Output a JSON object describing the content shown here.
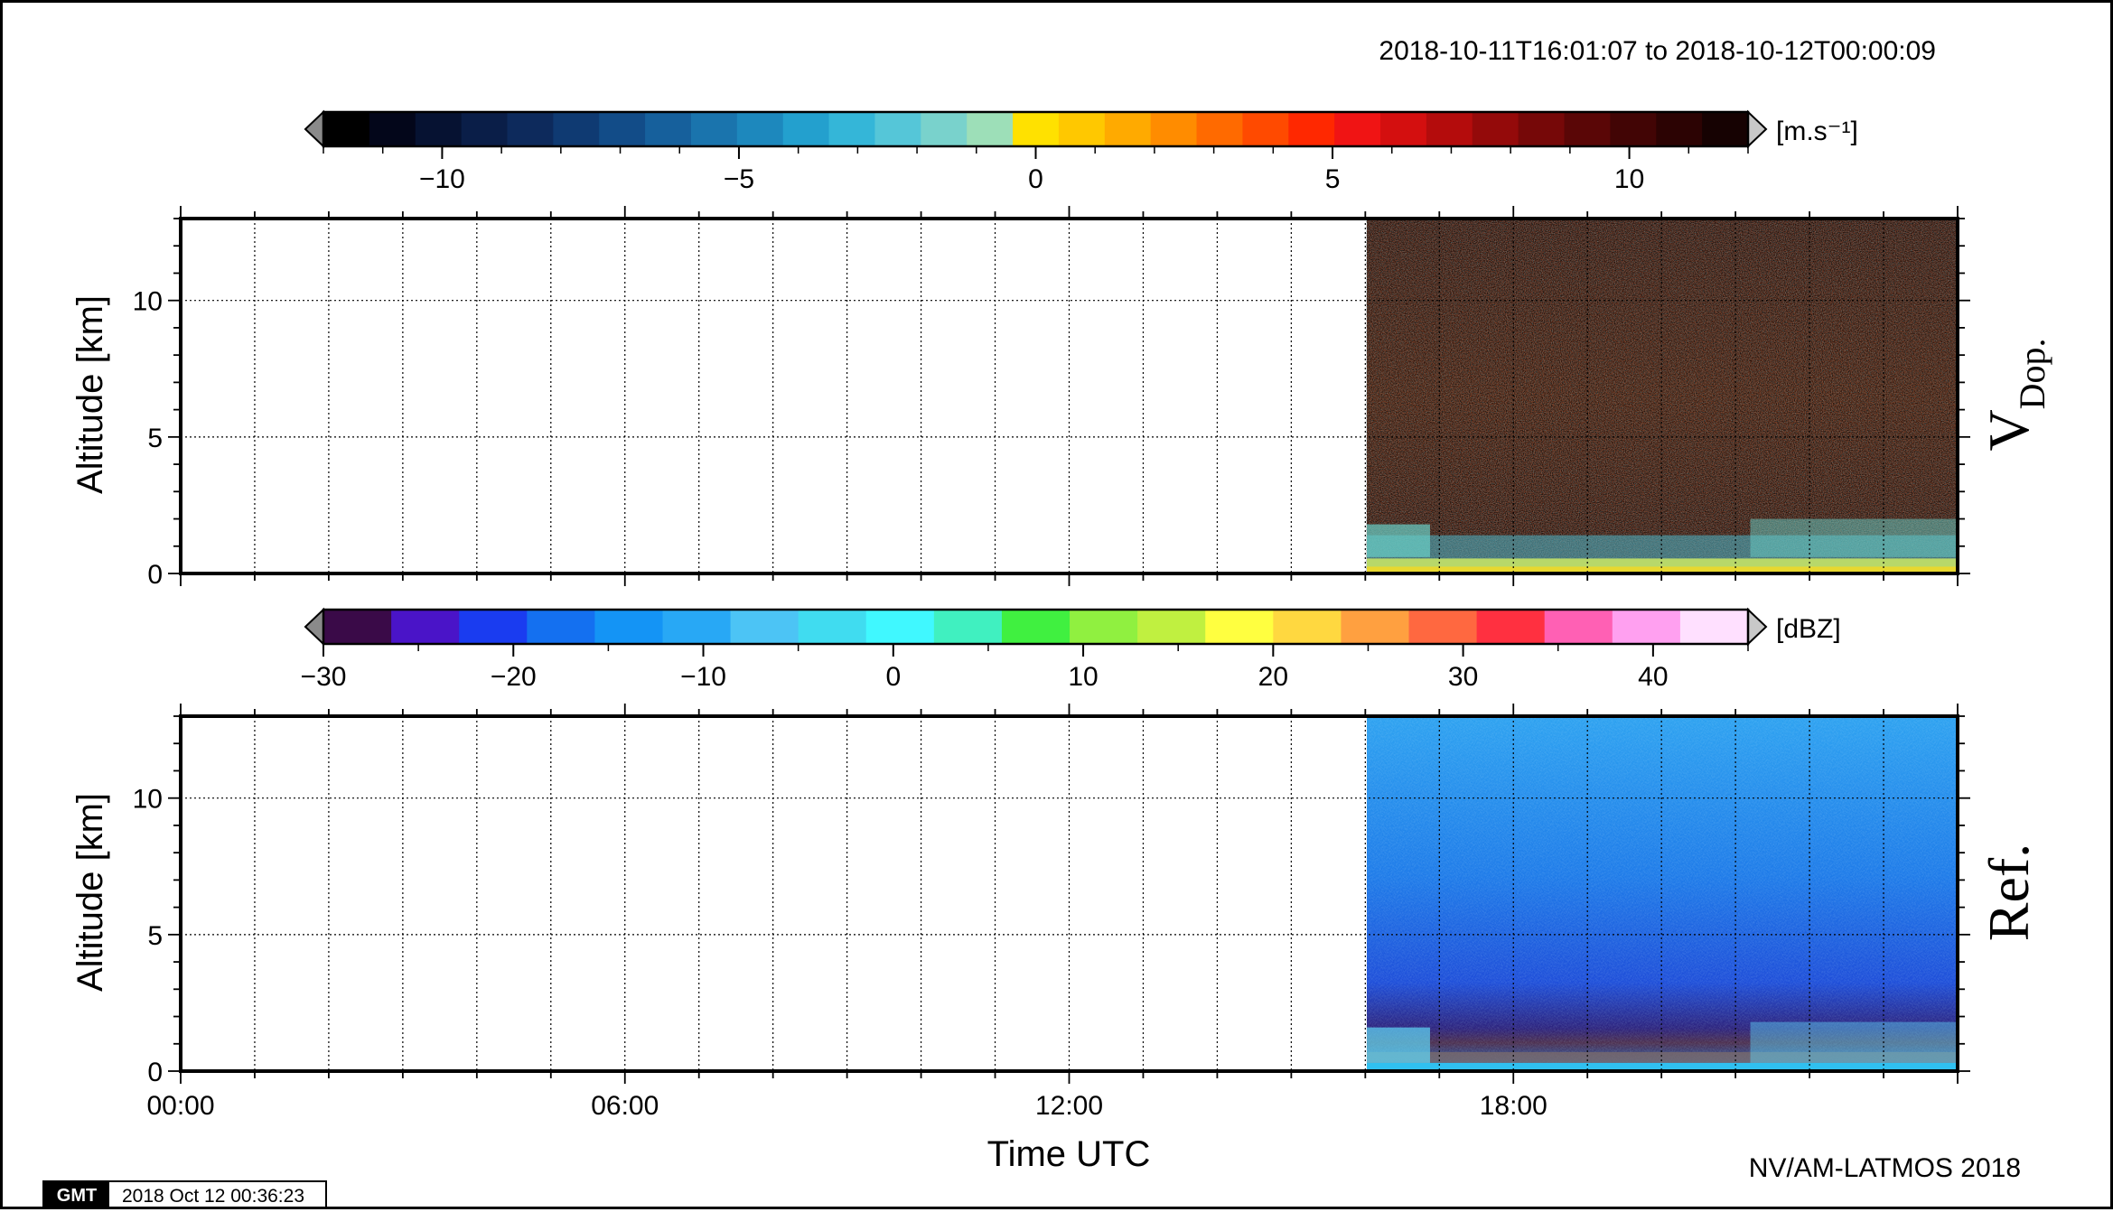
{
  "header": {
    "time_range": "2018-10-11T16:01:07 to 2018-10-12T00:00:09"
  },
  "footer": {
    "gmt_logo": "GMT",
    "timestamp": "2018 Oct 12 00:36:23",
    "credit": "NV/AM-LATMOS 2018"
  },
  "chart_data": [
    {
      "type": "heatmap",
      "panel_label": "VDop.",
      "panel_label_main": "V",
      "panel_label_sub": "Dop.",
      "ylabel": "Altitude [km]",
      "xlabel": "",
      "ylim": [
        0,
        13
      ],
      "yticks": [
        0,
        5,
        10
      ],
      "xlim_hours": [
        0,
        24
      ],
      "data_start_hour": 16.02,
      "data_end_hour": 24.0,
      "grid": true,
      "colorbar": {
        "unit_label": "[m.s⁻¹]",
        "range": [
          -12,
          12
        ],
        "ticks": [
          "−10",
          "−5",
          "0",
          "5",
          "10"
        ],
        "tick_values": [
          -10,
          -5,
          0,
          5,
          10
        ],
        "colors": [
          "#000000",
          "#03061a",
          "#061232",
          "#0a1e48",
          "#0d2a5c",
          "#0f3a72",
          "#124c88",
          "#16609c",
          "#1a74ad",
          "#1d88bd",
          "#23a0ce",
          "#34b6d8",
          "#55c6d8",
          "#79d2cc",
          "#9ddfb8",
          "#ffe100",
          "#ffc800",
          "#ffaa00",
          "#ff8c00",
          "#ff6a00",
          "#ff4a00",
          "#ff2800",
          "#f01414",
          "#d40f0f",
          "#b40c0c",
          "#940a0a",
          "#760808",
          "#5a0606",
          "#420505",
          "#2c0303",
          "#160202"
        ]
      },
      "summary": "Noisy Doppler velocity field from 16:01 onwards; low-level echo below ~2 km"
    },
    {
      "type": "heatmap",
      "panel_label": "Ref.",
      "ylabel": "Altitude [km]",
      "xlabel": "Time UTC",
      "xticks": [
        "00:00",
        "06:00",
        "12:00",
        "18:00"
      ],
      "ylim": [
        0,
        13
      ],
      "yticks": [
        0,
        5,
        10
      ],
      "xlim_hours": [
        0,
        24
      ],
      "data_start_hour": 16.02,
      "data_end_hour": 24.0,
      "grid": true,
      "colorbar": {
        "unit_label": "[dBZ]",
        "range": [
          -30,
          45
        ],
        "ticks": [
          "−30",
          "−20",
          "−10",
          "0",
          "10",
          "20",
          "30",
          "40"
        ],
        "tick_values": [
          -30,
          -20,
          -10,
          0,
          10,
          20,
          30,
          40
        ],
        "colors": [
          "#3a0a48",
          "#4a14c8",
          "#1a3cf0",
          "#1470f0",
          "#1494f5",
          "#28a8f5",
          "#4cc4f5",
          "#40dcf0",
          "#40f8ff",
          "#40f0c0",
          "#40f040",
          "#90f040",
          "#c0f040",
          "#ffff40",
          "#ffd840",
          "#ffa040",
          "#ff6840",
          "#ff3040",
          "#ff60b4",
          "#ffa0f0",
          "#ffe0ff"
        ]
      },
      "summary": "Reflectivity mostly -15 to -5 dBZ above 2 km, darker low-level band near 1 km, shallow echoes near the ground"
    }
  ]
}
